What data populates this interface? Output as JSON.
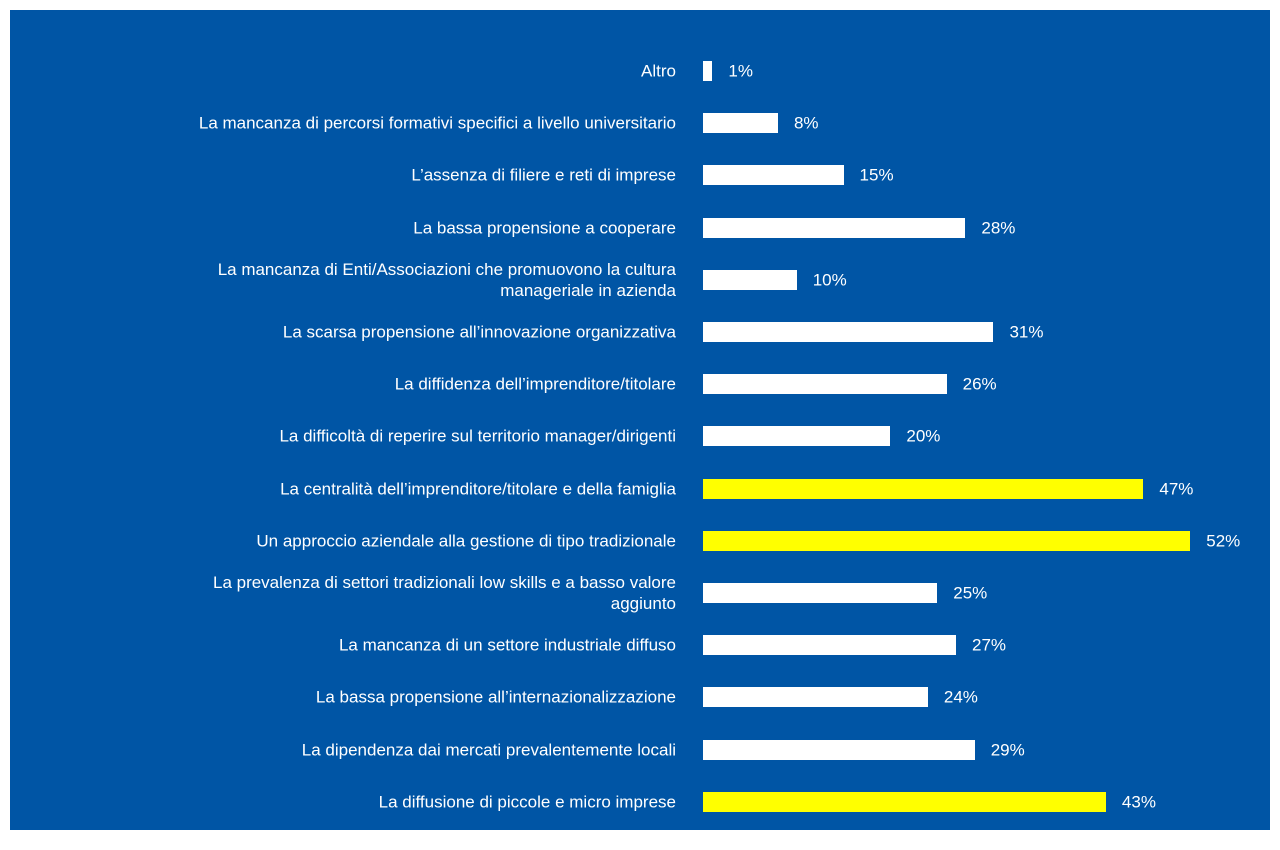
{
  "chart_data": {
    "type": "bar",
    "orientation": "horizontal",
    "categories": [
      "Altro",
      "La mancanza di percorsi formativi specifici a livello universitario",
      "L’assenza di filiere e reti di imprese",
      "La bassa propensione a cooperare",
      "La mancanza di Enti/Associazioni che promuovono la cultura\nmanageriale in azienda",
      "La scarsa propensione all’innovazione organizzativa",
      "La diffidenza dell’imprenditore/titolare",
      "La difficoltà di reperire sul territorio manager/dirigenti",
      "La centralità dell’imprenditore/titolare e della famiglia",
      "Un approccio aziendale alla gestione di tipo tradizionale",
      "La prevalenza di settori tradizionali low skills  e a basso valore\naggiunto",
      "La mancanza di un settore industriale diffuso",
      "La bassa propensione all’internazionalizzazione",
      "La dipendenza dai mercati prevalentemente locali",
      "La diffusione di piccole e micro imprese"
    ],
    "values": [
      1,
      8,
      15,
      28,
      10,
      31,
      26,
      20,
      47,
      52,
      25,
      27,
      24,
      29,
      43
    ],
    "value_labels": [
      "1%",
      "8%",
      "15%",
      "28%",
      "10%",
      "31%",
      "26%",
      "20%",
      "47%",
      "52%",
      "25%",
      "27%",
      "24%",
      "29%",
      "43%"
    ],
    "colors": [
      "#ffffff",
      "#ffffff",
      "#ffffff",
      "#ffffff",
      "#ffffff",
      "#ffffff",
      "#ffffff",
      "#ffffff",
      "#ffff00",
      "#ffff00",
      "#ffffff",
      "#ffffff",
      "#ffffff",
      "#ffffff",
      "#ffff00"
    ]
  }
}
